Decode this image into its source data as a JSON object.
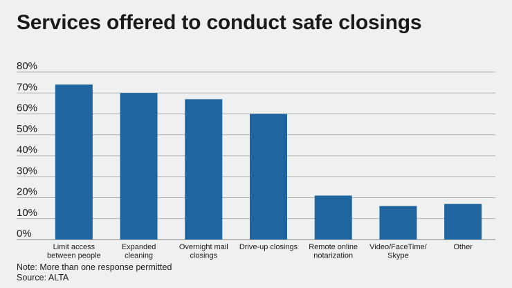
{
  "title": "Services offered to conduct safe closings",
  "note": "Note: More than one response permitted",
  "source": "Source: ALTA",
  "colors": {
    "bar": "#1f66a0",
    "grid": "#9a9a9a",
    "background": "#eff1f1"
  },
  "chart_data": {
    "type": "bar",
    "categories": [
      [
        "Limit access",
        "between people"
      ],
      [
        "Expanded",
        "cleaning"
      ],
      [
        "Overnight mail",
        "closings"
      ],
      [
        "Drive-up closings"
      ],
      [
        "Remote online",
        "notarization"
      ],
      [
        "Video/FaceTime/",
        "Skype"
      ],
      [
        "Other"
      ]
    ],
    "values": [
      74,
      70,
      67,
      60,
      21,
      16,
      17
    ],
    "ylim": [
      0,
      80
    ],
    "yticks": [
      "0%",
      "10%",
      "20%",
      "30%",
      "40%",
      "50%",
      "60%",
      "70%",
      "80%"
    ],
    "grid": true,
    "legend": "none"
  }
}
